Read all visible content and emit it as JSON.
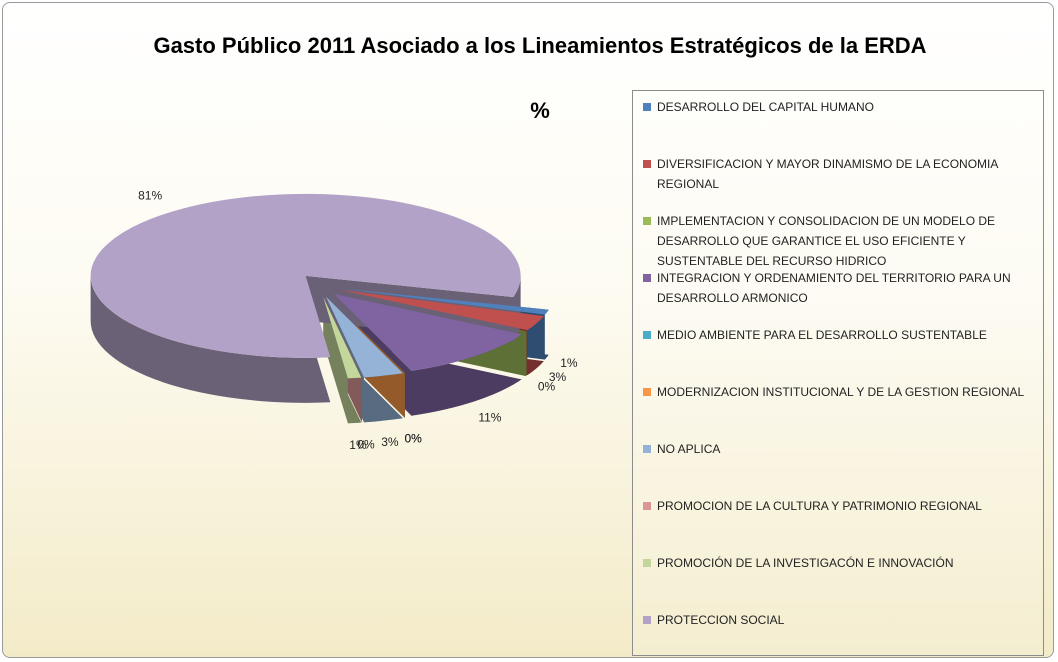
{
  "chart_data": {
    "type": "pie",
    "title": "Gasto Público 2011 Asociado a los Lineamientos Estratégicos de la ERDA",
    "subtitle": "%",
    "categories": [
      "DESARROLLO DEL CAPITAL HUMANO",
      "DIVERSIFICACION Y MAYOR DINAMISMO DE LA ECONOMIA REGIONAL",
      "IMPLEMENTACION Y CONSOLIDACION DE UN MODELO DE DESARROLLO QUE GARANTICE EL USO EFICIENTE  Y SUSTENTABLE  DEL RECURSO HIDRICO",
      "INTEGRACION Y ORDENAMIENTO DEL TERRITORIO PARA UN DESARROLLO ARMONICO",
      "MEDIO AMBIENTE PARA EL DESARROLLO SUSTENTABLE",
      "MODERNIZACION INSTITUCIONAL Y DE LA GESTION REGIONAL",
      "NO APLICA",
      "PROMOCION DE LA CULTURA Y PATRIMONIO REGIONAL",
      "PROMOCIÓN DE LA INVESTIGACÓN E INNOVACIÓN",
      "PROTECCION SOCIAL"
    ],
    "values": [
      1,
      3,
      0,
      11,
      0,
      0,
      3,
      0,
      1,
      81
    ],
    "value_labels": [
      "1%",
      "3%",
      "0%",
      "11%",
      "0%",
      "0%",
      "3%",
      "0%",
      "1%",
      "81%"
    ],
    "colors": [
      "#4f81bd",
      "#c0504d",
      "#9bbb59",
      "#8064a2",
      "#4bacc6",
      "#f79646",
      "#95b3d7",
      "#d99694",
      "#c3d69b",
      "#b3a2c7"
    ],
    "legend": "right"
  }
}
